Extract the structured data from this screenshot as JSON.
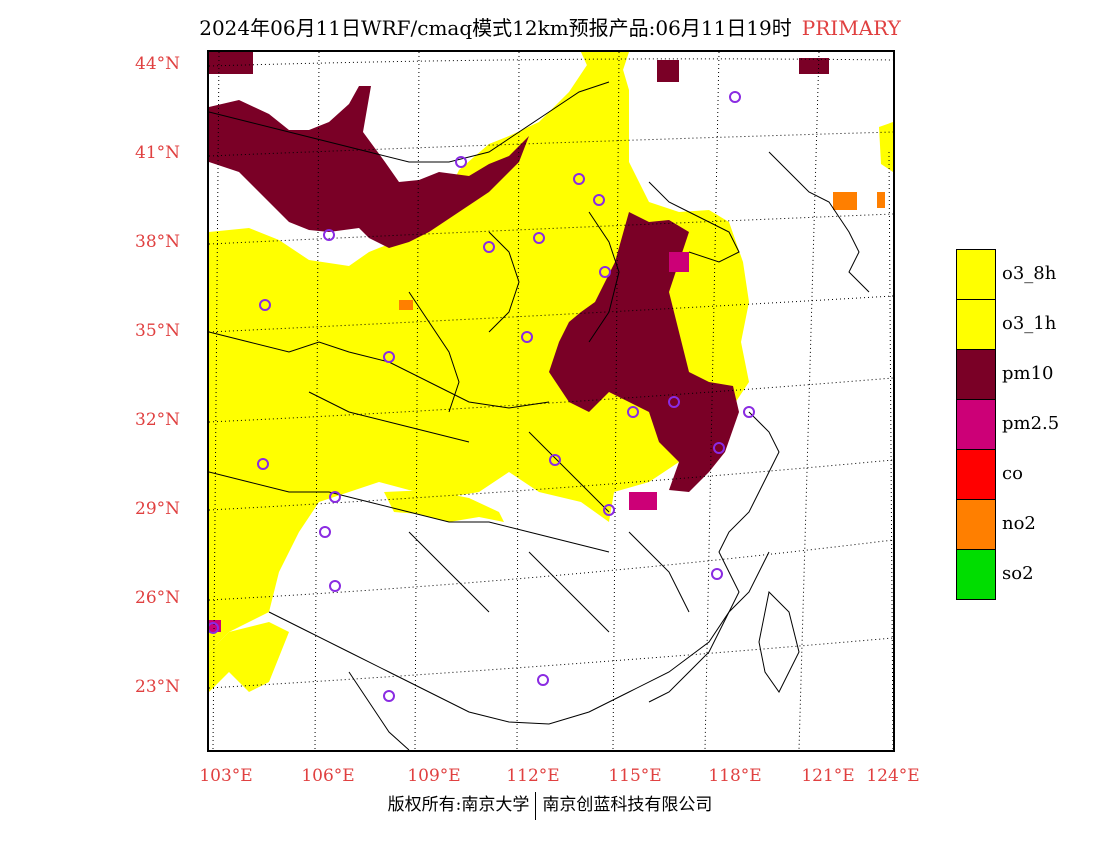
{
  "title": {
    "main": "2024年06月11日WRF/cmaq模式12km预报产品:06月11日19时",
    "tag": "PRIMARY"
  },
  "colors": {
    "axis_label": "#e04040",
    "o3_8h": "#ffff00",
    "o3_1h": "#ffff00",
    "pm10": "#7a0026",
    "pm2_5": "#cc0077",
    "co": "#ff0000",
    "no2": "#ff7f00",
    "so2": "#00dd00",
    "station_marker": "#8a2be2"
  },
  "map": {
    "lat_labels": [
      "44°N",
      "41°N",
      "38°N",
      "35°N",
      "32°N",
      "29°N",
      "26°N",
      "23°N"
    ],
    "lon_labels": [
      "103°E",
      "106°E",
      "109°E",
      "112°E",
      "115°E",
      "118°E",
      "121°E",
      "124°E"
    ]
  },
  "legend": {
    "items": [
      {
        "label": "o3_8h",
        "color": "#ffff00"
      },
      {
        "label": "o3_1h",
        "color": "#ffff00"
      },
      {
        "label": "pm10",
        "color": "#7a0026"
      },
      {
        "label": "pm2.5",
        "color": "#cc0077"
      },
      {
        "label": "co",
        "color": "#ff0000"
      },
      {
        "label": "no2",
        "color": "#ff7f00"
      },
      {
        "label": "so2",
        "color": "#00dd00"
      }
    ]
  },
  "footer": {
    "left": "版权所有:南京大学",
    "right": "南京创蓝科技有限公司"
  }
}
